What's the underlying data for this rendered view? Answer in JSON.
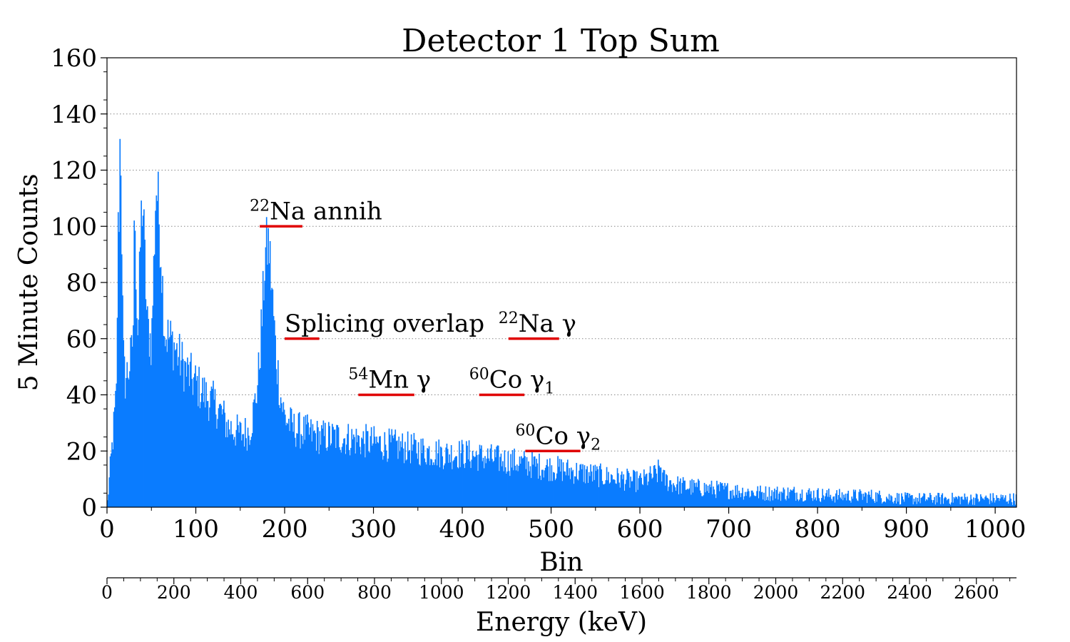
{
  "chart_data": {
    "type": "bar",
    "title": "Detector 1 Top Sum",
    "xlabel": "Bin",
    "ylabel": "5 Minute Counts",
    "secondary_xlabel": "Energy (keV)",
    "xlim": [
      0,
      1024
    ],
    "ylim": [
      0,
      160
    ],
    "secondary_xlim": [
      0,
      2720
    ],
    "x_ticks": [
      0,
      100,
      200,
      300,
      400,
      500,
      600,
      700,
      800,
      900,
      1000
    ],
    "x_tick_labels": [
      "0",
      "100",
      "200",
      "300",
      "400",
      "500",
      "600",
      "700",
      "800",
      "900",
      "1000"
    ],
    "y_ticks": [
      0,
      20,
      40,
      60,
      80,
      100,
      120,
      140,
      160
    ],
    "y_tick_labels": [
      "0",
      "20",
      "40",
      "60",
      "80",
      "100",
      "120",
      "140",
      "160"
    ],
    "secondary_x_ticks": [
      0,
      200,
      400,
      600,
      800,
      1000,
      1200,
      1400,
      1600,
      1800,
      2000,
      2200,
      2400,
      2600
    ],
    "secondary_x_tick_labels": [
      "0",
      "200",
      "400",
      "600",
      "800",
      "1000",
      "1200",
      "1400",
      "1600",
      "1800",
      "2000",
      "2200",
      "2400",
      "2600"
    ],
    "grid": "horizontal dotted",
    "bar_color": "#0a7cff",
    "annotation_color": "#e00000",
    "spectrum_profile": {
      "bins": [
        0,
        11,
        12,
        13,
        15,
        18,
        20,
        25,
        28,
        30,
        31,
        33,
        35,
        38,
        40,
        45,
        50,
        53,
        55,
        57,
        60,
        65,
        70,
        75,
        80,
        90,
        100,
        110,
        120,
        130,
        135,
        140,
        150,
        160,
        165,
        170,
        175,
        178,
        182,
        185,
        190,
        195,
        200,
        205,
        210,
        220,
        240,
        260,
        280,
        300,
        320,
        340,
        360,
        380,
        400,
        420,
        440,
        460,
        480,
        500,
        520,
        540,
        560,
        580,
        600,
        620,
        623,
        626,
        640,
        660,
        700,
        740,
        780,
        820,
        860,
        900,
        940,
        980,
        1024
      ],
      "counts": [
        0,
        42,
        100,
        95,
        140,
        55,
        45,
        50,
        55,
        70,
        118,
        75,
        60,
        100,
        110,
        65,
        58,
        90,
        115,
        110,
        95,
        62,
        60,
        58,
        54,
        48,
        44,
        40,
        37,
        33,
        29,
        28,
        26,
        27,
        34,
        45,
        70,
        90,
        94,
        80,
        55,
        40,
        32,
        30,
        28,
        27,
        25,
        25,
        24,
        23,
        22,
        21,
        20,
        19,
        19,
        18,
        17,
        16,
        15,
        14,
        13,
        12,
        11,
        10,
        9,
        12,
        15,
        10,
        8,
        7,
        6,
        5,
        5,
        4,
        4,
        3,
        3,
        3,
        3
      ]
    },
    "annotations": [
      {
        "sup": "22",
        "label": "Na annih",
        "x_range": [
          172,
          220
        ],
        "y": 100
      },
      {
        "sup": "",
        "label": "Splicing overlap",
        "x_range": [
          200,
          239
        ],
        "y": 60
      },
      {
        "sup": "22",
        "label": "Na γ",
        "x_range": [
          452,
          509
        ],
        "y": 60
      },
      {
        "sup": "54",
        "label": "Mn γ",
        "x_range": [
          283,
          346
        ],
        "y": 40
      },
      {
        "sup": "60",
        "label": "Co γ",
        "sub": "1",
        "x_range": [
          419,
          470
        ],
        "y": 40
      },
      {
        "sup": "60",
        "label": "Co γ",
        "sub": "2",
        "x_range": [
          471,
          533
        ],
        "y": 20
      }
    ]
  }
}
